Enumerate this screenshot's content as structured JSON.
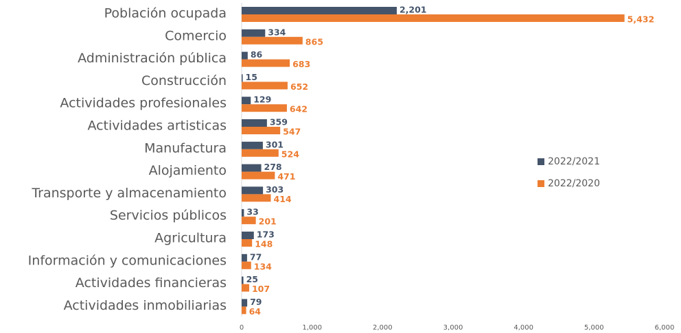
{
  "chart_data": {
    "type": "bar",
    "orientation": "horizontal",
    "categories": [
      "Población ocupada",
      "Comercio",
      "Administración pública",
      "Construcción",
      "Actividades profesionales",
      "Actividades artisticas",
      "Manufactura",
      "Alojamiento",
      "Transporte y almacenamiento",
      "Servicios públicos",
      "Agricultura",
      "Información y comunicaciones",
      "Actividades financieras",
      "Actividades inmobiliarias"
    ],
    "series": [
      {
        "name": "2022/2021",
        "color": "#44546a",
        "values": [
          2201,
          334,
          86,
          15,
          129,
          359,
          301,
          278,
          303,
          33,
          173,
          77,
          25,
          79
        ],
        "value_labels": [
          "2,201",
          "334",
          "86",
          "15",
          "129",
          "359",
          "301",
          "278",
          "303",
          "33",
          "173",
          "77",
          "25",
          "79"
        ]
      },
      {
        "name": "2022/2020",
        "color": "#ed7d31",
        "values": [
          5432,
          865,
          683,
          652,
          642,
          547,
          524,
          471,
          414,
          201,
          148,
          134,
          107,
          64
        ],
        "value_labels": [
          "5,432",
          "865",
          "683",
          "652",
          "642",
          "547",
          "524",
          "471",
          "414",
          "201",
          "148",
          "134",
          "107",
          "64"
        ]
      }
    ],
    "xlim": [
      0,
      6000
    ],
    "xticks": [
      0,
      {
        "value": 1000,
        "label": "1,000"
      },
      {
        "value": 2000,
        "label": "2,000"
      },
      {
        "value": 3000,
        "label": "3,000"
      },
      {
        "value": 4000,
        "label": "4,000"
      },
      {
        "value": 5000,
        "label": "5,000"
      },
      {
        "value": 6000,
        "label": "6,000"
      }
    ],
    "legend": "right"
  }
}
